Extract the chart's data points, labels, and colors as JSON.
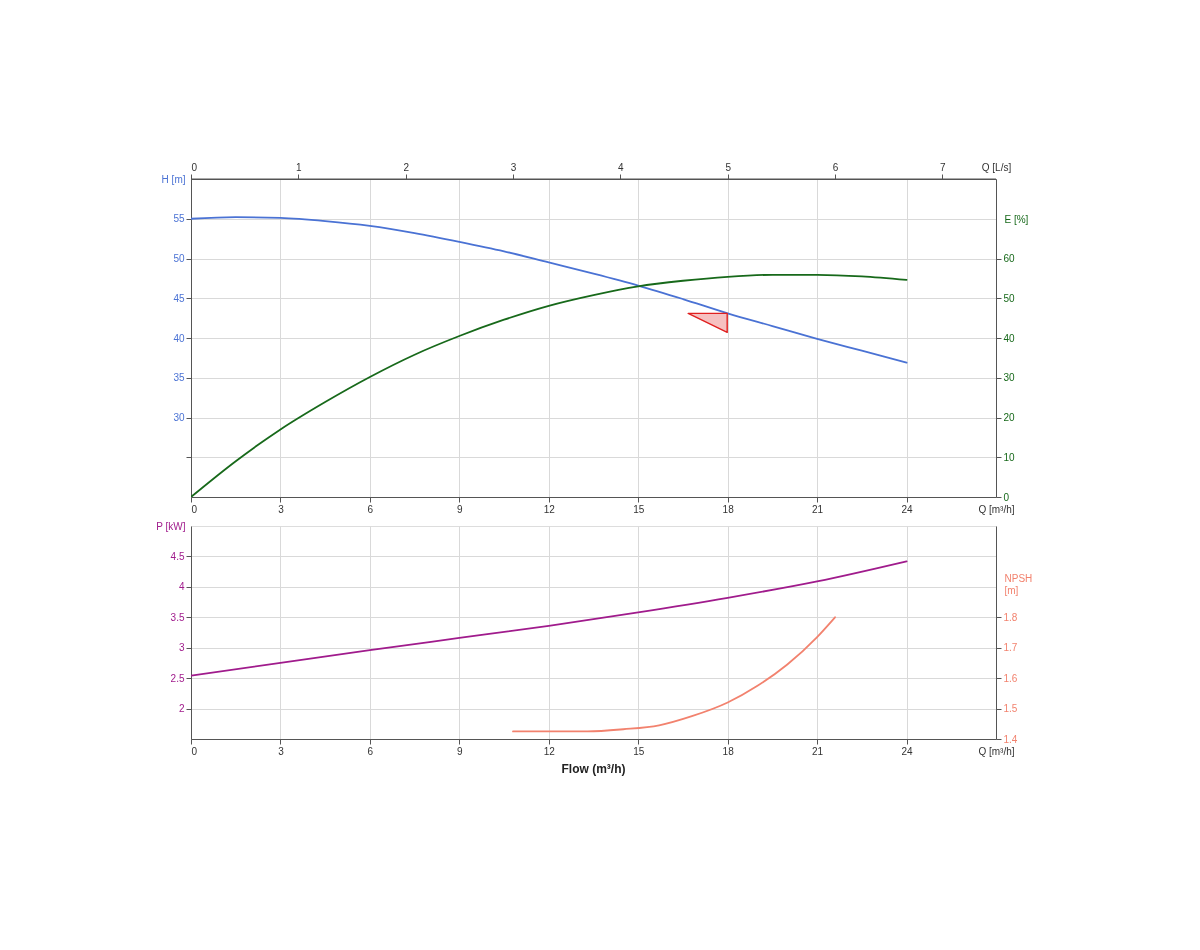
{
  "chart_data": [
    {
      "type": "line",
      "xlabel": "Q [m³/h]",
      "x2label": "Q [L/s]",
      "ylabel": "H [m]",
      "y2label": "E [%]",
      "xlim": [
        0,
        27
      ],
      "xticks": [
        0,
        3,
        6,
        9,
        12,
        15,
        18,
        21,
        24
      ],
      "x2lim": [
        0,
        7.5
      ],
      "x2ticks": [
        0,
        1,
        2,
        3,
        4,
        5,
        6,
        7
      ],
      "ylim": [
        20,
        60
      ],
      "yticks": [
        {
          "value": 25,
          "label": null
        },
        30,
        35,
        40,
        45,
        50,
        55
      ],
      "y2lim": [
        0,
        80
      ],
      "y2ticks": [
        0,
        10,
        20,
        30,
        40,
        50,
        60
      ],
      "grid": true,
      "series": [
        {
          "color": "#4a72d4",
          "x": [
            0,
            1.5,
            3,
            4.5,
            6,
            7.5,
            9,
            10.5,
            12,
            13.5,
            15,
            16.5,
            18,
            19.5,
            21,
            22.5,
            24
          ],
          "values": [
            55.0,
            55.2,
            55.1,
            54.7,
            54.1,
            53.2,
            52.1,
            50.9,
            49.5,
            48.1,
            46.6,
            44.9,
            43.1,
            41.5,
            39.9,
            38.4,
            36.9
          ]
        },
        {
          "type": "scatter",
          "marker": "triangle",
          "color": "#e02020",
          "x": [
            17.33
          ],
          "values": [
            41.9
          ]
        },
        {
          "color": "#17691a",
          "axis": "y2",
          "x": [
            0,
            1.5,
            3,
            4.5,
            6,
            7.5,
            9,
            10.5,
            12,
            13.5,
            15,
            16.5,
            18,
            19.5,
            21,
            22.5,
            24
          ],
          "values": [
            0,
            9.0,
            17.0,
            23.9,
            30.2,
            35.8,
            40.5,
            44.6,
            48.1,
            50.8,
            53.0,
            54.4,
            55.4,
            55.9,
            55.9,
            55.5,
            54.6
          ]
        }
      ]
    },
    {
      "type": "line",
      "xlabel": "Q [m³/h]",
      "ylabel": "P [kW]",
      "y2label": "NPSH [m]",
      "xlim": [
        0,
        27
      ],
      "xticks": [
        0,
        3,
        6,
        9,
        12,
        15,
        18,
        21,
        24
      ],
      "ylim": [
        1.5,
        5
      ],
      "yticks": [
        2,
        2.5,
        3,
        3.5,
        4,
        4.5
      ],
      "y2lim": [
        1.4,
        2.1
      ],
      "y2ticks": [
        1.4,
        1.5,
        1.6,
        1.7,
        1.8
      ],
      "grid": true,
      "annotations": [
        "Flow (m³/h)"
      ],
      "series": [
        {
          "color": "#a01b8c",
          "x": [
            0,
            3,
            6,
            9,
            12,
            15,
            18,
            21,
            24
          ],
          "values": [
            2.54,
            2.75,
            2.96,
            3.16,
            3.36,
            3.58,
            3.82,
            4.09,
            4.42
          ]
        },
        {
          "color": "#f2826e",
          "axis": "y2",
          "x": [
            10.8,
            12,
            13.3,
            14.5,
            15.7,
            16.8,
            18,
            19,
            20,
            21,
            21.6
          ],
          "values": [
            1.425,
            1.425,
            1.425,
            1.432,
            1.445,
            1.475,
            1.52,
            1.575,
            1.645,
            1.735,
            1.8
          ]
        }
      ]
    }
  ]
}
